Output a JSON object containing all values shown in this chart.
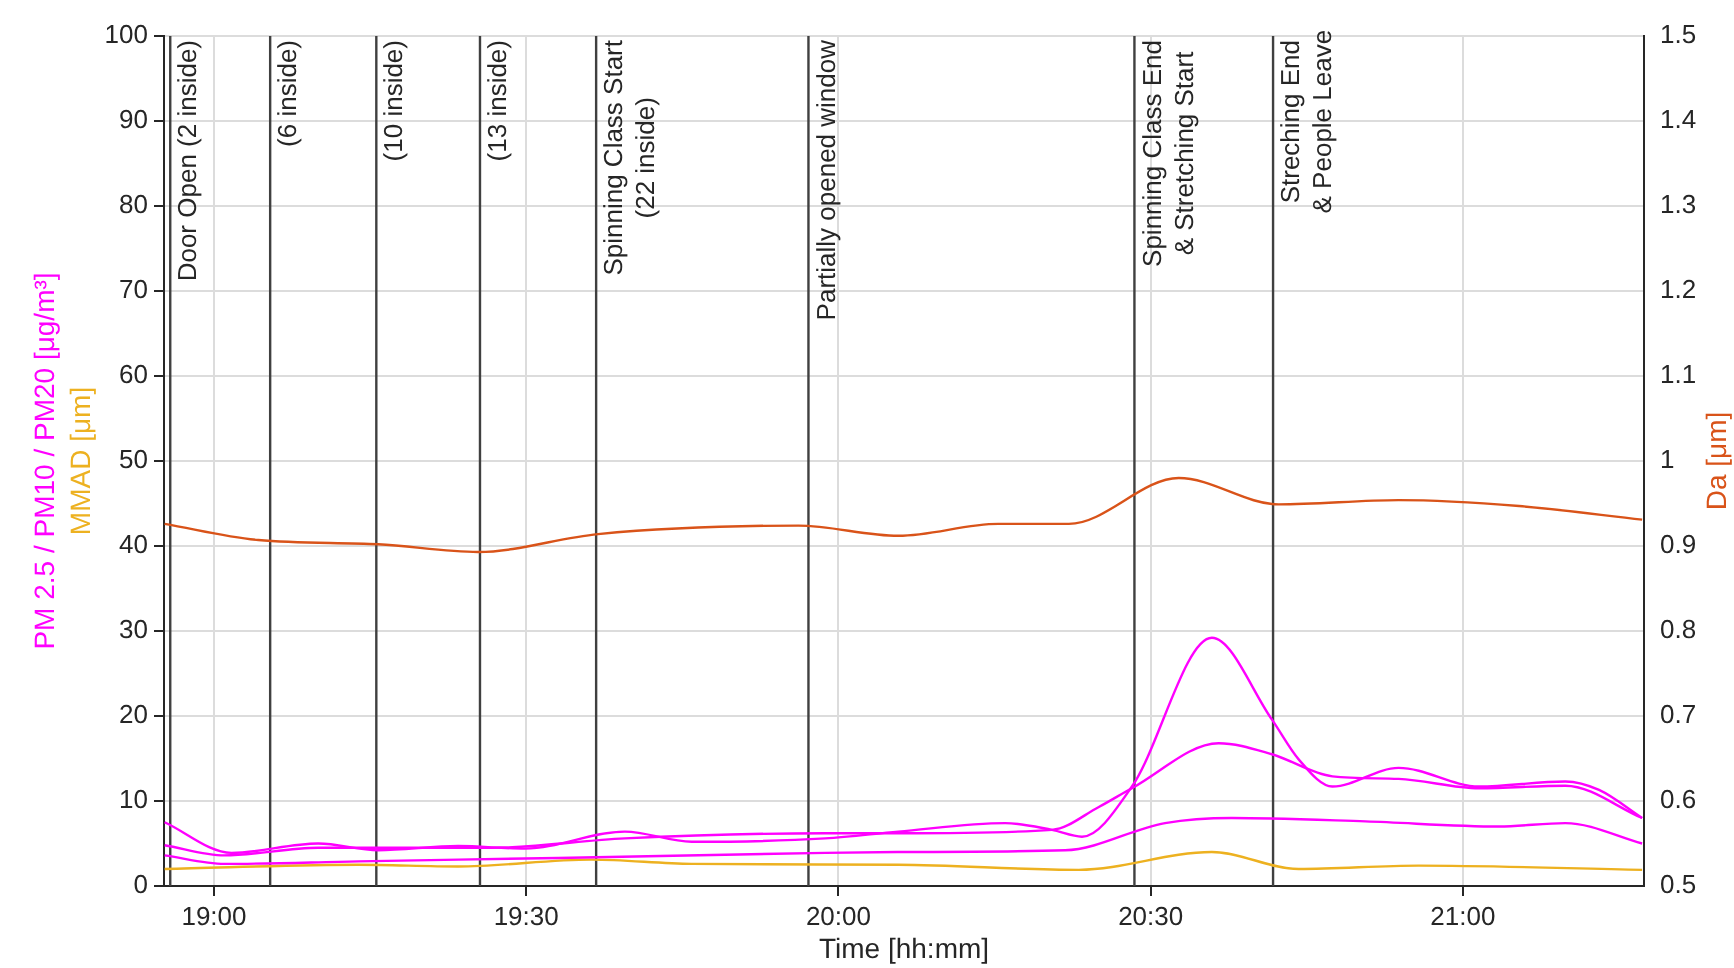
{
  "chart_data": {
    "type": "line",
    "xlabel": "Time [hh:mm]",
    "ylabel": "PM 2.5 / PM10 / PM20 [μg/m³]\nMMAD [μm]",
    "y2label": "Da [μm]",
    "xlim": [
      18.92,
      21.29
    ],
    "xticks": [
      {
        "value": 19,
        "label": "19:00"
      },
      {
        "value": 19.5,
        "label": "19:30"
      },
      {
        "value": 20,
        "label": "20:00"
      },
      {
        "value": 20.5,
        "label": "20:30"
      },
      {
        "value": 21,
        "label": "21:00"
      }
    ],
    "ylim": [
      0,
      100
    ],
    "yticks": [
      0,
      10,
      20,
      30,
      40,
      50,
      60,
      70,
      80,
      90,
      100
    ],
    "y2lim": [
      0.5,
      1.5
    ],
    "y2ticks": [
      0.5,
      0.6,
      0.7,
      0.8,
      0.9,
      1,
      1.1,
      1.2,
      1.3,
      1.4,
      1.5
    ],
    "grid": true,
    "series": [
      {
        "color": "#ff00ff",
        "x": [
          18.921,
          19.028,
          19.167,
          19.263,
          19.391,
          19.498,
          19.658,
          19.765,
          19.979,
          20.096,
          20.267,
          20.342,
          20.39,
          20.47,
          20.598,
          20.694,
          20.737,
          20.791,
          20.897,
          21.026,
          21.164,
          21.218,
          21.287
        ],
        "values": [
          7.5,
          3.9,
          5.0,
          4.2,
          4.7,
          4.4,
          6.4,
          5.2,
          5.6,
          6.4,
          7.4,
          6.6,
          5.8,
          11.7,
          29.2,
          19.6,
          14.9,
          11.7,
          13.9,
          11.7,
          12.3,
          11.3,
          8.0
        ]
      },
      {
        "color": "#ff00ff",
        "x": [
          18.921,
          19.017,
          19.167,
          19.444,
          19.658,
          19.979,
          20.096,
          20.342,
          20.417,
          20.47,
          20.609,
          20.694,
          20.791,
          20.897,
          21.026,
          21.164,
          21.287
        ],
        "values": [
          4.8,
          3.6,
          4.5,
          4.5,
          5.6,
          6.2,
          6.2,
          6.6,
          9.3,
          11.5,
          16.8,
          15.5,
          12.9,
          12.6,
          11.5,
          11.8,
          8.0
        ]
      },
      {
        "color": "#ff00ff",
        "x": [
          18.921,
          19.017,
          19.231,
          19.551,
          19.979,
          20.096,
          20.363,
          20.523,
          20.63,
          20.844,
          21.058,
          21.164,
          21.287
        ],
        "values": [
          3.6,
          2.6,
          2.9,
          3.3,
          3.9,
          4.0,
          4.2,
          7.4,
          8.0,
          7.6,
          7.0,
          7.4,
          5.0
        ]
      },
      {
        "color": "#edb120",
        "x": [
          18.921,
          19.231,
          19.391,
          19.605,
          19.765,
          20.096,
          20.385,
          20.598,
          20.737,
          20.929,
          21.287
        ],
        "values": [
          2.0,
          2.5,
          2.3,
          3.1,
          2.6,
          2.5,
          1.9,
          4.0,
          2.0,
          2.4,
          1.9
        ]
      },
      {
        "color": "#d95319",
        "axis": "y2",
        "x": [
          18.921,
          19.071,
          19.263,
          19.423,
          19.615,
          19.936,
          20.096,
          20.256,
          20.369,
          20.545,
          20.705,
          20.897,
          21.09,
          21.287
        ],
        "values": [
          0.926,
          0.907,
          0.902,
          0.893,
          0.914,
          0.924,
          0.912,
          0.926,
          0.926,
          0.98,
          0.949,
          0.954,
          0.947,
          0.931
        ]
      }
    ],
    "ref_lines": [
      {
        "axis": "x",
        "value": 18.93,
        "label": "Door Open (2 inside)"
      },
      {
        "axis": "x",
        "value": 19.09,
        "label": "(6 inside)"
      },
      {
        "axis": "x",
        "value": 19.26,
        "label": "(10 inside)"
      },
      {
        "axis": "x",
        "value": 19.426,
        "label": "(13 inside)"
      },
      {
        "axis": "x",
        "value": 19.612,
        "label": "Spinning Class Start\n(22 inside)"
      },
      {
        "axis": "x",
        "value": 19.952,
        "label": "Partially opened window"
      },
      {
        "axis": "x",
        "value": 20.474,
        "label": "Spinning Class End\n& Stretching Start"
      },
      {
        "axis": "x",
        "value": 20.696,
        "label": "Streching End\n& People Leave"
      }
    ]
  }
}
